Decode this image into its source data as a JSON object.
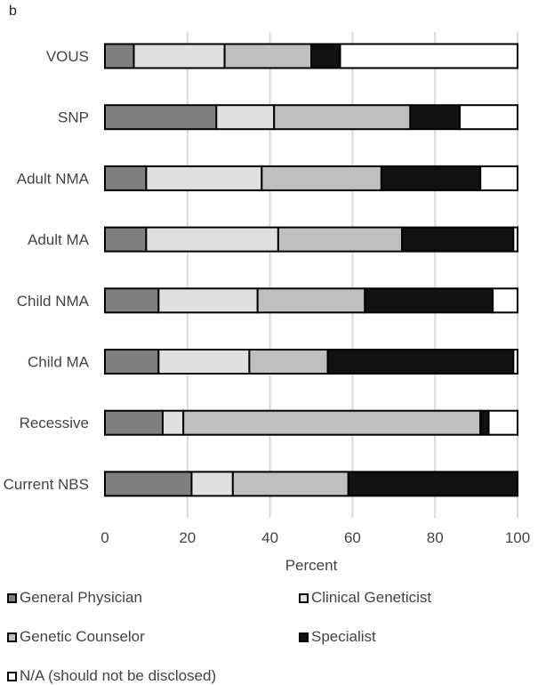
{
  "panel_label": "b",
  "chart_data": {
    "type": "bar",
    "orientation": "horizontal",
    "stacked": true,
    "categories": [
      "VOUS",
      "SNP",
      "Adult NMA",
      "Adult MA",
      "Child NMA",
      "Child MA",
      "Recessive",
      "Current NBS"
    ],
    "series": [
      {
        "name": "General Physician",
        "color": "#7f7f7f",
        "values": [
          7,
          27,
          10,
          10,
          13,
          13,
          14,
          21
        ]
      },
      {
        "name": "Clinical Geneticist",
        "color": "#e0e0e0",
        "values": [
          22,
          14,
          28,
          32,
          24,
          22,
          5,
          10
        ]
      },
      {
        "name": "Genetic Counselor",
        "color": "#bfbfbf",
        "values": [
          21,
          33,
          29,
          30,
          26,
          19,
          72,
          28
        ]
      },
      {
        "name": "Specialist",
        "color": "#111111",
        "values": [
          7,
          12,
          24,
          27,
          31,
          45,
          2,
          41
        ]
      },
      {
        "name": "N/A (should not be disclosed)",
        "color": "#ffffff",
        "values": [
          43,
          14,
          9,
          1,
          6,
          1,
          7,
          0
        ]
      }
    ],
    "xlabel": "Percent",
    "ylabel": "",
    "xlim": [
      0,
      100
    ],
    "xticks": [
      0,
      20,
      40,
      60,
      80,
      100
    ],
    "grid": "vertical",
    "legend": "bottom"
  }
}
